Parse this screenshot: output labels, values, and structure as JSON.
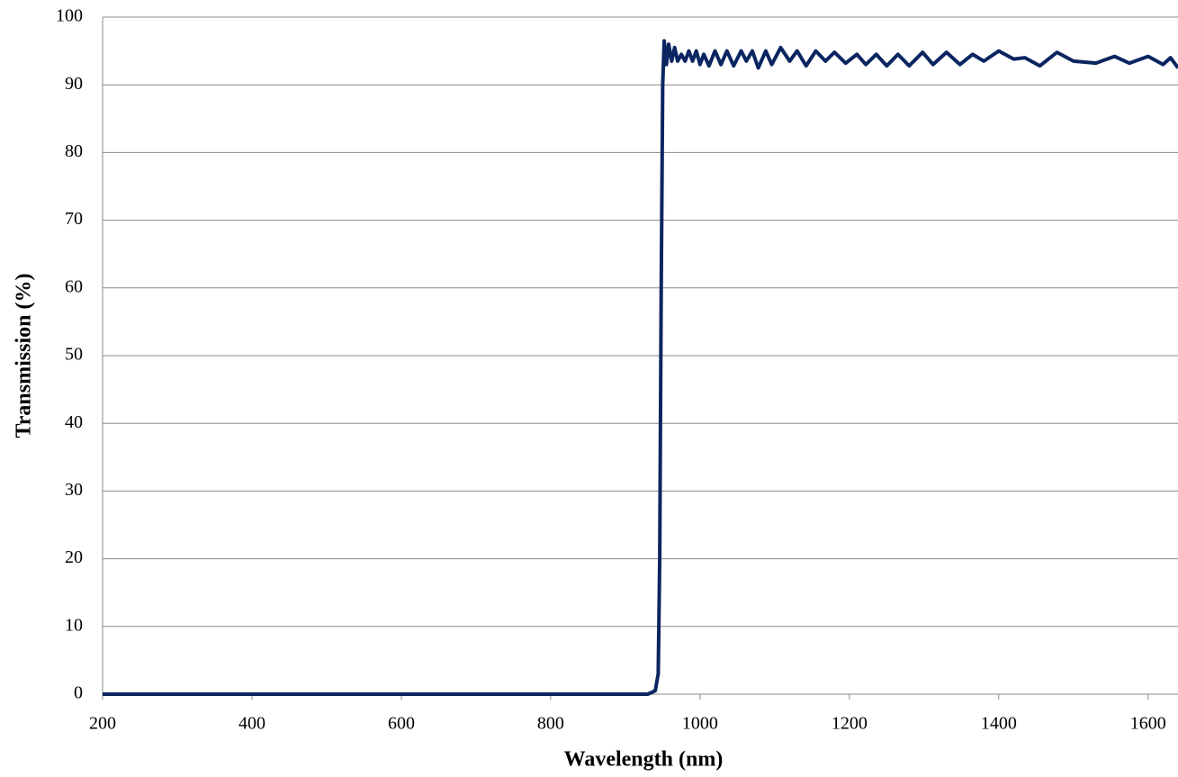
{
  "chart_data": {
    "type": "line",
    "x_label": "Wavelength (nm)",
    "y_label": "Transmission (%)",
    "xlim": [
      200,
      1640
    ],
    "ylim": [
      0,
      100
    ],
    "xticks": [
      200,
      400,
      600,
      800,
      1000,
      1200,
      1400,
      1600
    ],
    "yticks": [
      0,
      10,
      20,
      30,
      40,
      50,
      60,
      70,
      80,
      90,
      100
    ],
    "grid": true,
    "series": [
      {
        "name": "Transmission",
        "color": "#0b2561",
        "x": [
          200,
          300,
          400,
          500,
          600,
          700,
          800,
          900,
          930,
          940,
          944,
          946,
          948,
          950,
          952,
          955,
          958,
          962,
          966,
          970,
          975,
          980,
          985,
          990,
          995,
          1000,
          1005,
          1012,
          1020,
          1028,
          1036,
          1045,
          1055,
          1062,
          1070,
          1078,
          1088,
          1096,
          1108,
          1120,
          1130,
          1142,
          1155,
          1168,
          1180,
          1195,
          1210,
          1222,
          1236,
          1250,
          1265,
          1280,
          1298,
          1312,
          1330,
          1348,
          1365,
          1380,
          1400,
          1420,
          1435,
          1455,
          1478,
          1500,
          1530,
          1555,
          1575,
          1600,
          1620,
          1630,
          1640
        ],
        "values": [
          0,
          0,
          0,
          0,
          0,
          0,
          0,
          0,
          0,
          0.5,
          3,
          20,
          60,
          90,
          96.5,
          93,
          96,
          93.5,
          95.5,
          93.5,
          94.5,
          93.5,
          95,
          93.5,
          95,
          93,
          94.5,
          92.8,
          95,
          93,
          95,
          92.8,
          95,
          93.5,
          95,
          92.5,
          95,
          93,
          95.5,
          93.5,
          95,
          92.8,
          95,
          93.5,
          94.8,
          93.2,
          94.5,
          93,
          94.5,
          92.8,
          94.5,
          92.8,
          94.8,
          93,
          94.8,
          93,
          94.5,
          93.5,
          95,
          93.8,
          94,
          92.8,
          94.8,
          93.5,
          93.2,
          94.2,
          93.2,
          94.2,
          93,
          94,
          92.5
        ]
      }
    ]
  }
}
